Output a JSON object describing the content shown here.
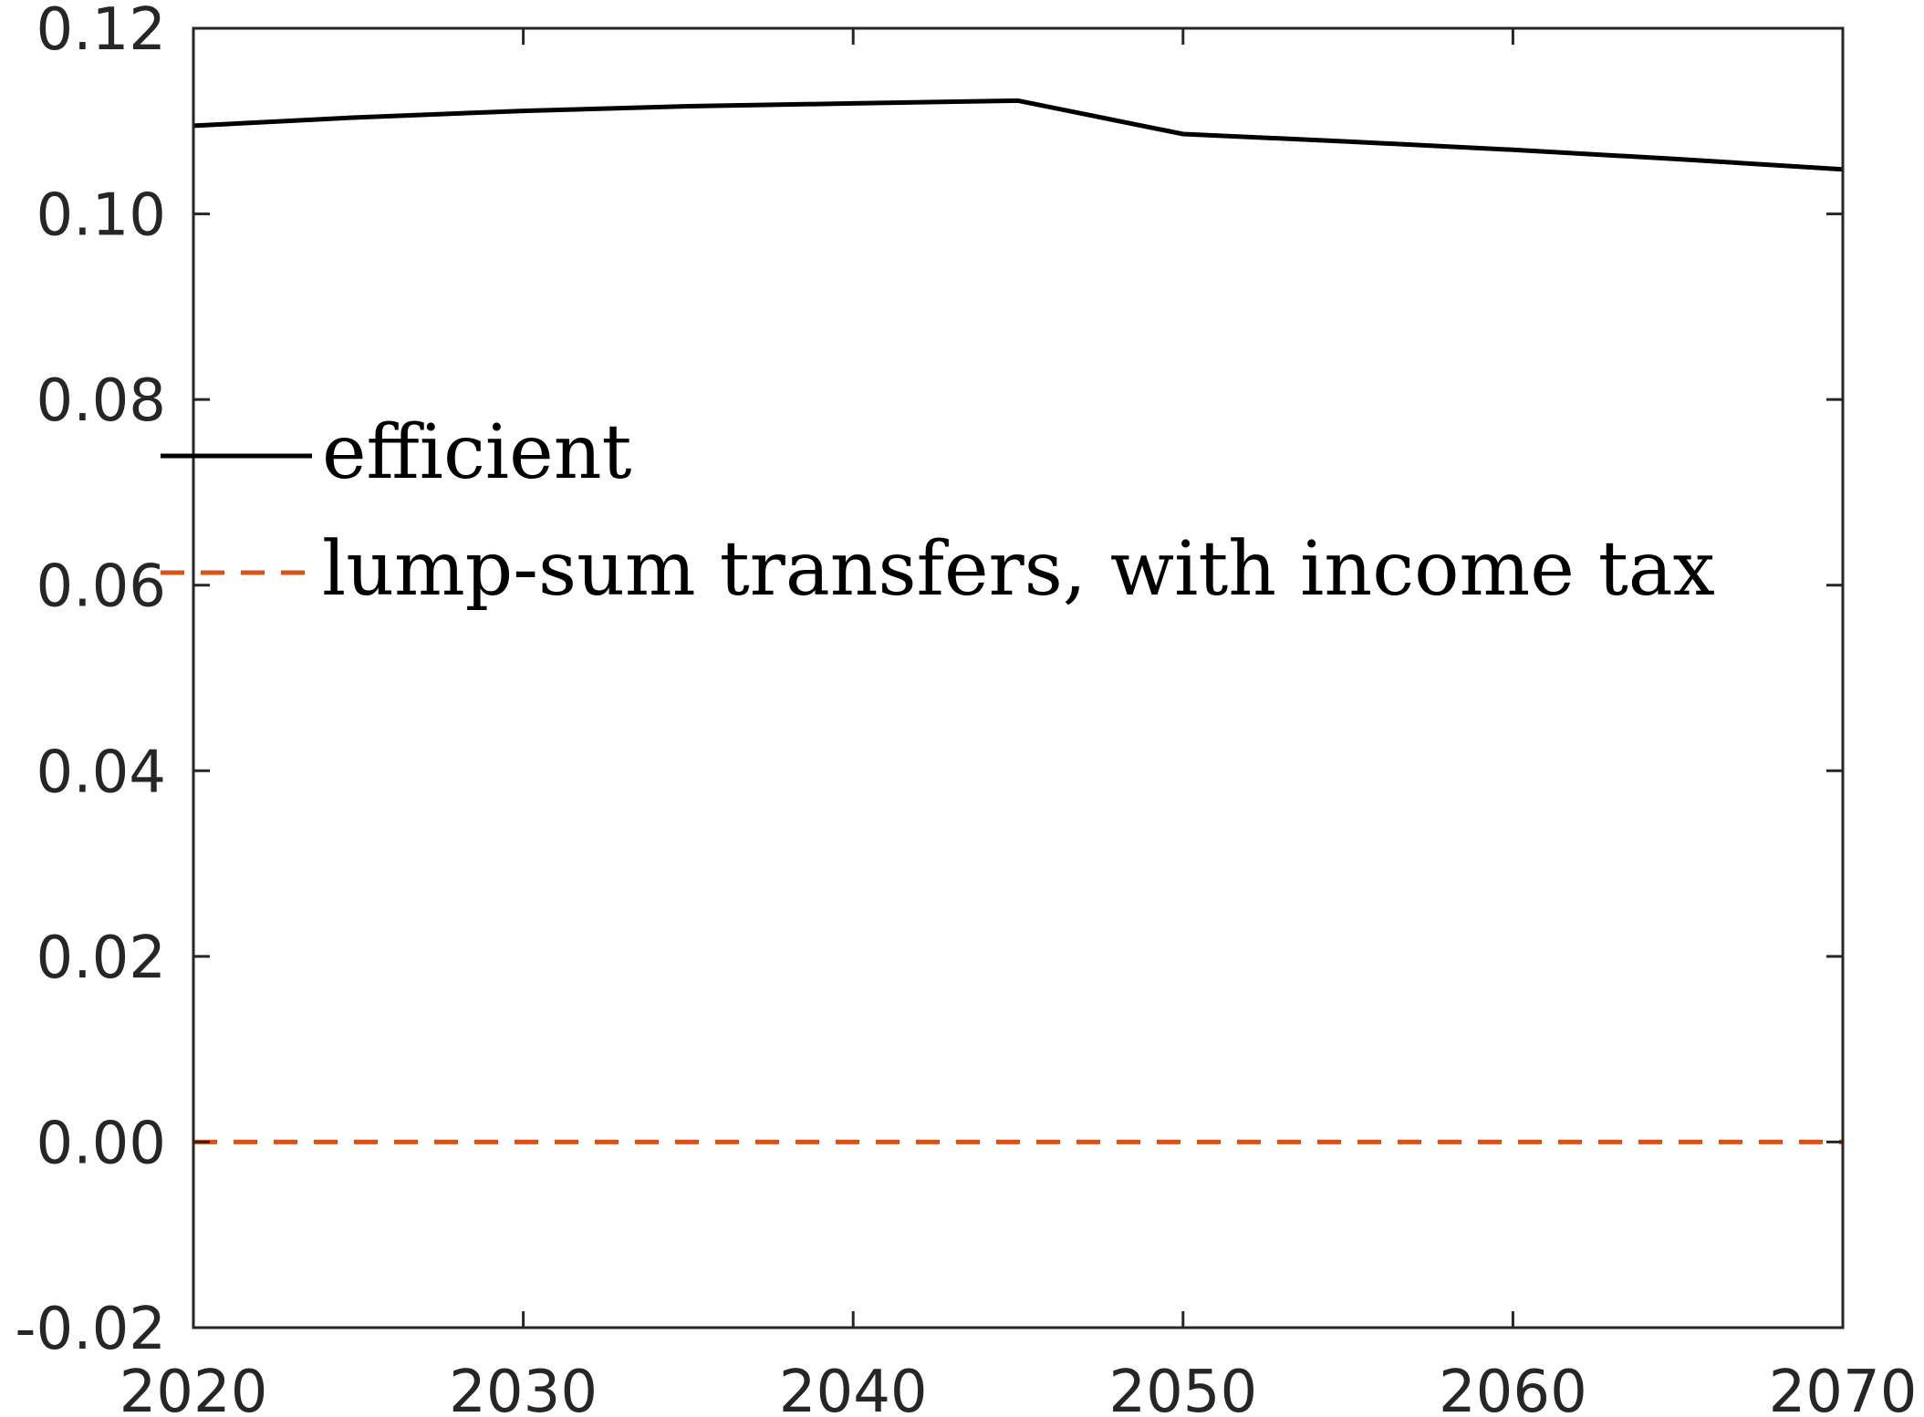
{
  "chart_data": {
    "type": "line",
    "title": "",
    "xlabel": "",
    "ylabel": "",
    "xlim": [
      2020,
      2070
    ],
    "ylim": [
      -0.02,
      0.12
    ],
    "xticks": [
      "2020",
      "2030",
      "2040",
      "2050",
      "2060",
      "2070"
    ],
    "yticks": [
      "-0.02",
      "0.00",
      "0.02",
      "0.04",
      "0.06",
      "0.08",
      "0.10",
      "0.12"
    ],
    "grid": false,
    "legend_position": "middle-left",
    "series": [
      {
        "name": "efficient",
        "color": "#000000",
        "style": "solid",
        "x": [
          2020,
          2025,
          2030,
          2035,
          2040,
          2045,
          2050,
          2055,
          2060,
          2065,
          2070
        ],
        "y": [
          0.1095,
          0.1104,
          0.1111,
          0.1116,
          0.1119,
          0.1122,
          0.1086,
          0.1078,
          0.1069,
          0.1059,
          0.1048
        ]
      },
      {
        "name": "lump-sum transfers, with income tax",
        "color": "#D95319",
        "style": "dashed",
        "x": [
          2020,
          2025,
          2030,
          2035,
          2040,
          2045,
          2050,
          2055,
          2060,
          2065,
          2070
        ],
        "y": [
          0,
          0,
          0,
          0,
          0,
          0,
          0,
          0,
          0,
          0,
          0
        ]
      }
    ]
  }
}
